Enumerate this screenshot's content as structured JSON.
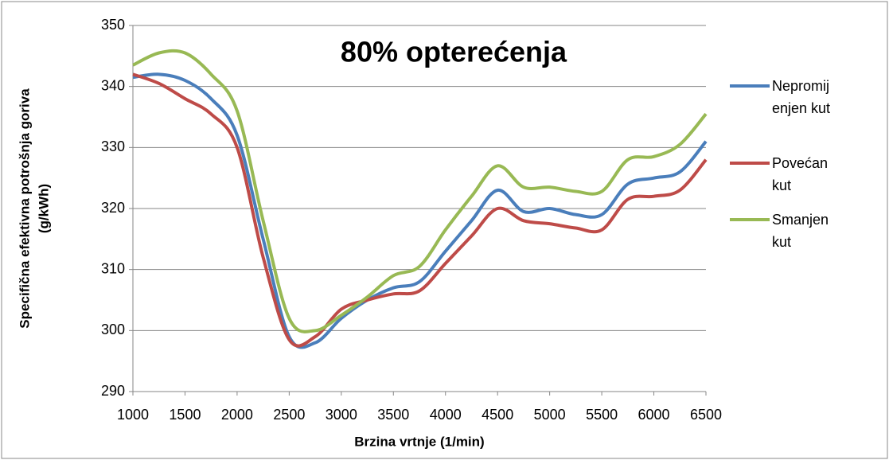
{
  "chart_data": {
    "type": "line",
    "title": "80% opterećenja",
    "x_label": "Brzina vrtnje (1/min)",
    "y_label": [
      "Specifična efektivna potrošnja goriva",
      "(g/kWh)"
    ],
    "x": [
      1000,
      1250,
      1500,
      1750,
      2000,
      2250,
      2500,
      2750,
      3000,
      3250,
      3500,
      3750,
      4000,
      4250,
      4500,
      4750,
      5000,
      5250,
      5500,
      5750,
      6000,
      6250,
      6500
    ],
    "series": [
      {
        "name": "Nepromijenjen kut",
        "color": "#4a7ebb",
        "values": [
          341.5,
          342,
          341,
          338,
          332,
          315,
          299,
          298,
          302,
          305,
          307,
          308,
          313,
          318,
          323,
          319.5,
          320,
          319,
          319,
          324,
          325,
          326,
          331
        ]
      },
      {
        "name": "Povećan kut",
        "color": "#be4b48",
        "values": [
          342,
          340.5,
          338,
          335.5,
          330,
          312,
          298.5,
          299,
          303.5,
          305,
          306,
          306.5,
          311,
          315.5,
          320,
          318,
          317.5,
          316.8,
          316.5,
          321.5,
          322,
          323,
          328
        ]
      },
      {
        "name": "Smanjen kut",
        "color": "#98b954",
        "values": [
          343.5,
          345.5,
          345.5,
          342,
          336,
          318,
          302,
          300,
          302.5,
          305.5,
          309,
          310.5,
          316.5,
          322,
          327,
          323.5,
          323.5,
          322.8,
          322.8,
          328,
          328.5,
          330.5,
          335.5
        ]
      }
    ],
    "xlim": [
      1000,
      6500
    ],
    "xticks": [
      1000,
      1500,
      2000,
      2500,
      3000,
      3500,
      4000,
      4500,
      5000,
      5500,
      6000,
      6500
    ],
    "ylim": [
      290,
      350
    ],
    "yticks": [
      290,
      300,
      310,
      320,
      330,
      340,
      350
    ],
    "grid": true,
    "legend": "right"
  }
}
